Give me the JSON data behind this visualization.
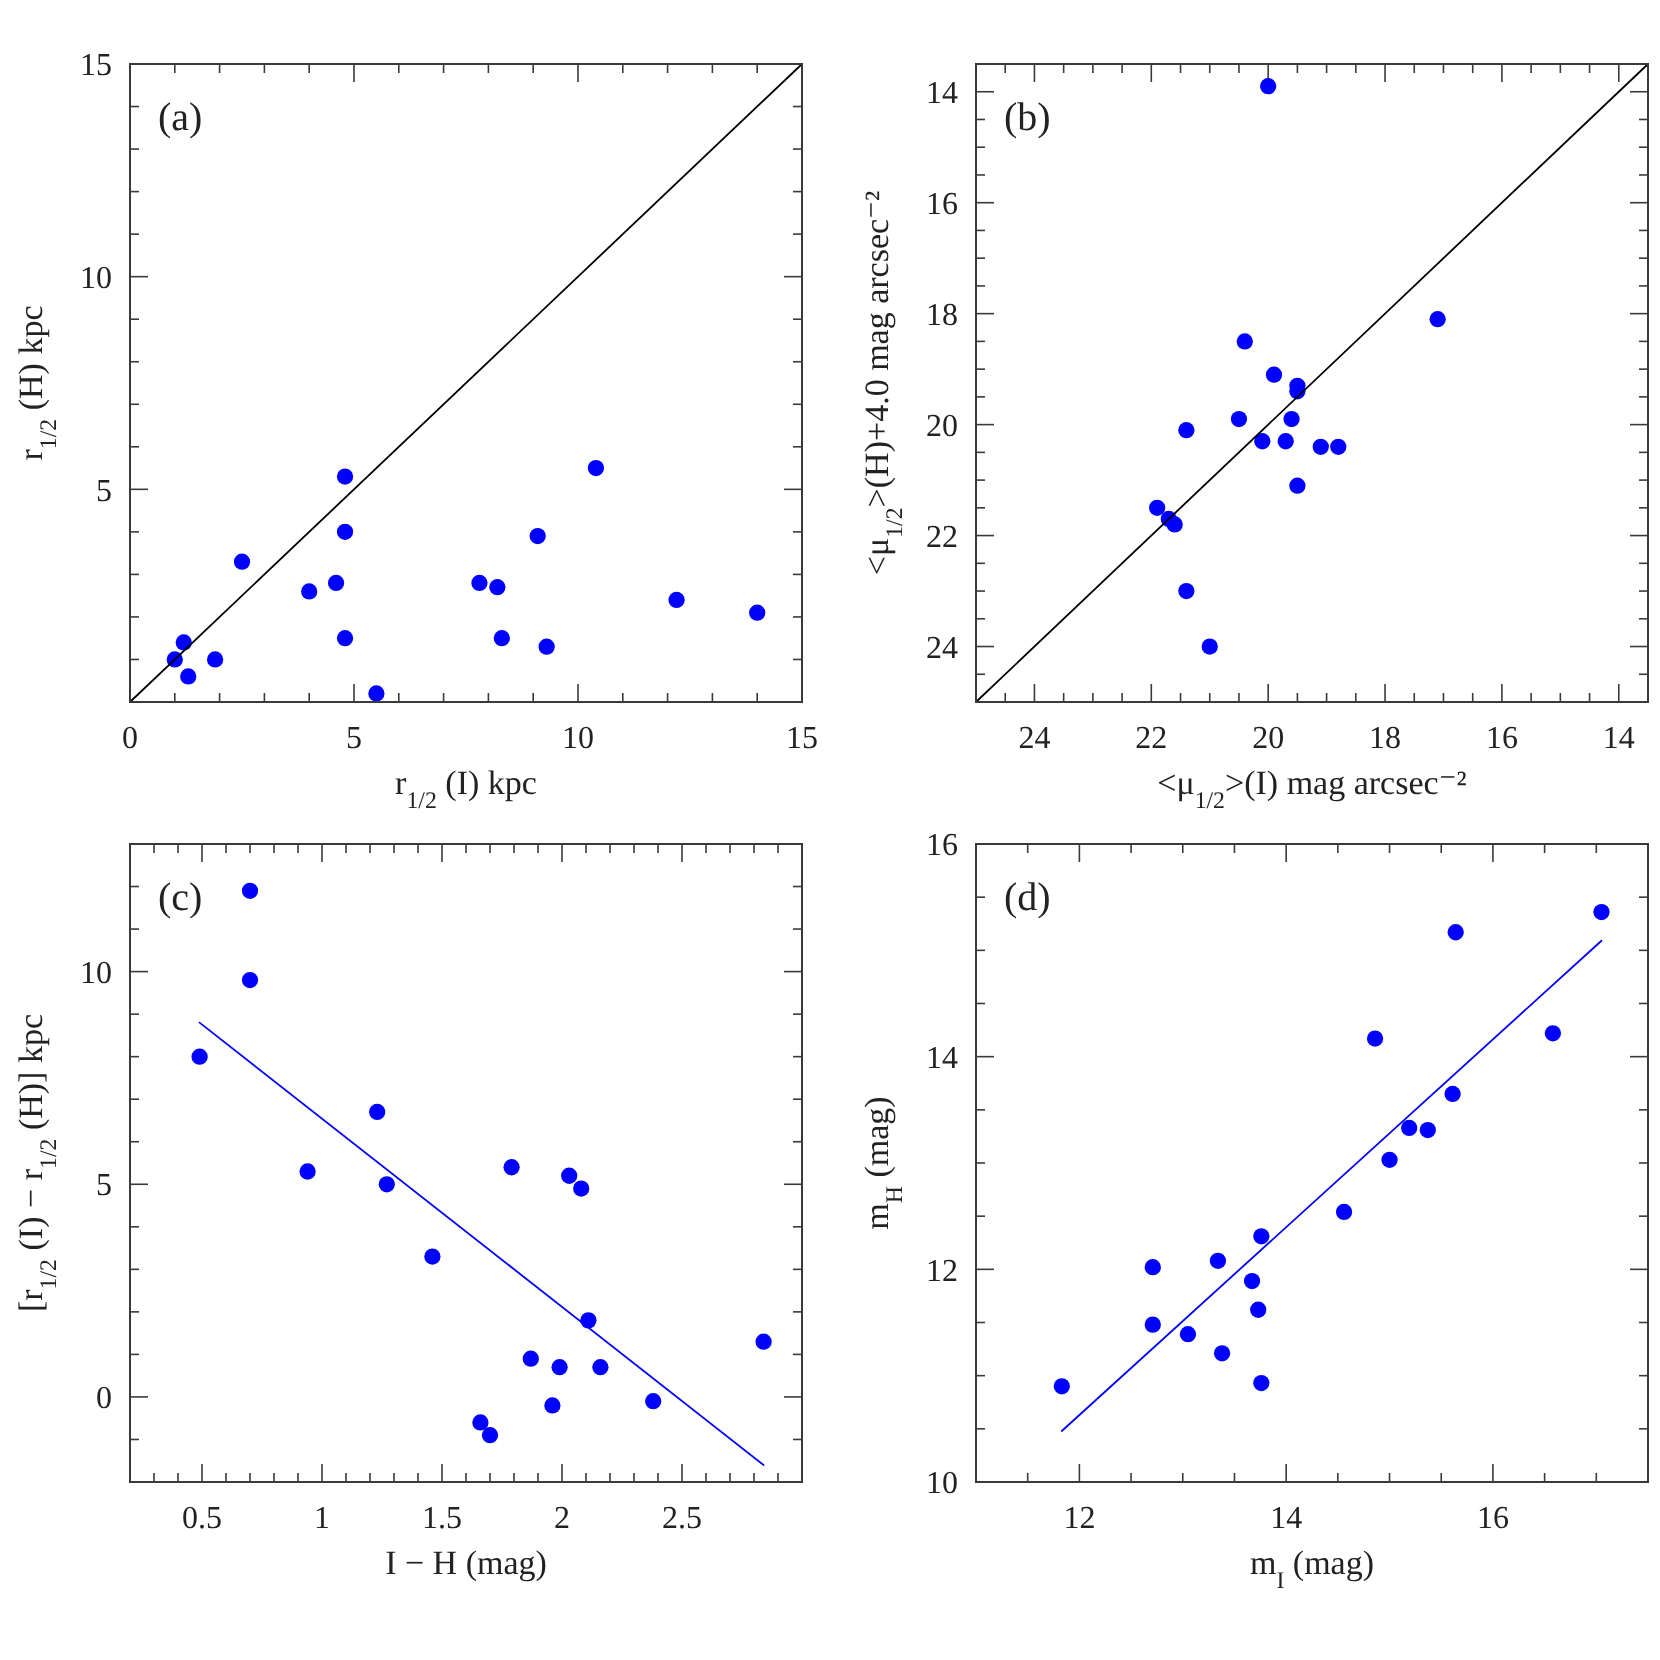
{
  "chart_data": [
    {
      "type": "scatter",
      "xlabel": "r$_{1/2}$ (I) kpc",
      "ylabel": "r$_{1/2}$ (H) kpc",
      "annotations": [
        "(a)"
      ],
      "xlim": [
        0,
        15
      ],
      "ylim": [
        0,
        15
      ],
      "xticks": [
        0,
        {
          "value": 1,
          "label": null
        },
        {
          "value": 2,
          "label": null
        },
        {
          "value": 3,
          "label": null
        },
        {
          "value": 4,
          "label": null
        },
        5,
        {
          "value": 6,
          "label": null
        },
        {
          "value": 7,
          "label": null
        },
        {
          "value": 8,
          "label": null
        },
        {
          "value": 9,
          "label": null
        },
        10,
        {
          "value": 11,
          "label": null
        },
        {
          "value": 12,
          "label": null
        },
        {
          "value": 13,
          "label": null
        },
        {
          "value": 14,
          "label": null
        },
        15
      ],
      "yticks": [
        {
          "value": 1,
          "label": null
        },
        {
          "value": 2,
          "label": null
        },
        {
          "value": 3,
          "label": null
        },
        {
          "value": 4,
          "label": null
        },
        5,
        {
          "value": 6,
          "label": null
        },
        {
          "value": 7,
          "label": null
        },
        {
          "value": 8,
          "label": null
        },
        {
          "value": 9,
          "label": null
        },
        10,
        {
          "value": 11,
          "label": null
        },
        {
          "value": 12,
          "label": null
        },
        {
          "value": 13,
          "label": null
        },
        {
          "value": 14,
          "label": null
        },
        15
      ],
      "series": [
        {
          "color": "#0000ff",
          "marker": "circle",
          "x": [
            1.0,
            1.2,
            1.3,
            1.9,
            2.5,
            4.0,
            4.6,
            4.8,
            4.8,
            4.8,
            5.5,
            7.8,
            8.2,
            8.3,
            9.1,
            9.3,
            10.4,
            12.2,
            14.0
          ],
          "values": [
            1.0,
            1.4,
            0.6,
            1.0,
            3.3,
            2.6,
            2.8,
            5.3,
            4.0,
            1.5,
            0.2,
            2.8,
            2.7,
            1.5,
            3.9,
            1.3,
            5.5,
            2.4,
            2.1
          ]
        },
        {
          "type": "line",
          "color": "#000000",
          "x": [
            0,
            15
          ],
          "values": [
            0,
            15
          ]
        }
      ]
    },
    {
      "type": "scatter",
      "xlabel": "<μ$_{1/2}$>(I) mag arcsec⁻²",
      "ylabel": "<μ$_{1/2}$>(H)+4.0 mag arcsec⁻²",
      "annotations": [
        "(b)"
      ],
      "xlim": [
        25,
        13.5
      ],
      "ylim": [
        25,
        13.5
      ],
      "xticks": [
        {
          "value": 24.5,
          "label": null
        },
        24,
        {
          "value": 23.5,
          "label": null
        },
        {
          "value": 23,
          "label": null
        },
        {
          "value": 22.5,
          "label": null
        },
        22,
        {
          "value": 21.5,
          "label": null
        },
        {
          "value": 21,
          "label": null
        },
        {
          "value": 20.5,
          "label": null
        },
        20,
        {
          "value": 19.5,
          "label": null
        },
        {
          "value": 19,
          "label": null
        },
        {
          "value": 18.5,
          "label": null
        },
        18,
        {
          "value": 17.5,
          "label": null
        },
        {
          "value": 17,
          "label": null
        },
        {
          "value": 16.5,
          "label": null
        },
        16,
        {
          "value": 15.5,
          "label": null
        },
        {
          "value": 15,
          "label": null
        },
        {
          "value": 14.5,
          "label": null
        },
        14
      ],
      "yticks": [
        14,
        {
          "value": 14.5,
          "label": null
        },
        {
          "value": 15,
          "label": null
        },
        {
          "value": 15.5,
          "label": null
        },
        16,
        {
          "value": 16.5,
          "label": null
        },
        {
          "value": 17,
          "label": null
        },
        {
          "value": 17.5,
          "label": null
        },
        18,
        {
          "value": 18.5,
          "label": null
        },
        {
          "value": 19,
          "label": null
        },
        {
          "value": 19.5,
          "label": null
        },
        20,
        {
          "value": 20.5,
          "label": null
        },
        {
          "value": 21,
          "label": null
        },
        {
          "value": 21.5,
          "label": null
        },
        22,
        {
          "value": 22.5,
          "label": null
        },
        {
          "value": 23,
          "label": null
        },
        {
          "value": 23.5,
          "label": null
        },
        24,
        {
          "value": 24.5,
          "label": null
        }
      ],
      "series": [
        {
          "color": "#0000ff",
          "marker": "circle",
          "x": [
            20.0,
            17.1,
            20.4,
            19.9,
            19.5,
            19.5,
            20.5,
            19.6,
            21.4,
            20.1,
            19.7,
            19.1,
            18.8,
            19.5,
            21.9,
            21.7,
            21.6,
            21.4,
            21.0
          ],
          "values": [
            13.9,
            18.1,
            18.5,
            19.1,
            19.3,
            19.4,
            19.9,
            19.9,
            20.1,
            20.3,
            20.3,
            20.4,
            20.4,
            21.1,
            21.5,
            21.7,
            21.8,
            23.0,
            24.0
          ]
        },
        {
          "type": "line",
          "color": "#000000",
          "x": [
            25,
            13.5
          ],
          "values": [
            25,
            13.5
          ]
        }
      ]
    },
    {
      "type": "scatter",
      "xlabel": "I − H (mag)",
      "ylabel": "[r$_{1/2}$ (I) − r$_{1/2}$ (H)] kpc",
      "annotations": [
        "(c)"
      ],
      "xlim": [
        0.2,
        3
      ],
      "ylim": [
        -2,
        13
      ],
      "xticks": [
        {
          "value": 0.3,
          "label": null
        },
        {
          "value": 0.4,
          "label": null
        },
        0.5,
        {
          "value": 0.6,
          "label": null
        },
        {
          "value": 0.7,
          "label": null
        },
        {
          "value": 0.8,
          "label": null
        },
        {
          "value": 0.9,
          "label": null
        },
        1,
        {
          "value": 1.1,
          "label": null
        },
        {
          "value": 1.2,
          "label": null
        },
        {
          "value": 1.3,
          "label": null
        },
        {
          "value": 1.4,
          "label": null
        },
        1.5,
        {
          "value": 1.6,
          "label": null
        },
        {
          "value": 1.7,
          "label": null
        },
        {
          "value": 1.8,
          "label": null
        },
        {
          "value": 1.9,
          "label": null
        },
        2,
        {
          "value": 2.1,
          "label": null
        },
        {
          "value": 2.2,
          "label": null
        },
        {
          "value": 2.3,
          "label": null
        },
        {
          "value": 2.4,
          "label": null
        },
        2.5,
        {
          "value": 2.6,
          "label": null
        },
        {
          "value": 2.7,
          "label": null
        },
        {
          "value": 2.8,
          "label": null
        },
        {
          "value": 2.9,
          "label": null
        }
      ],
      "yticks": [
        {
          "value": -1,
          "label": null
        },
        0,
        {
          "value": 1,
          "label": null
        },
        {
          "value": 2,
          "label": null
        },
        {
          "value": 3,
          "label": null
        },
        {
          "value": 4,
          "label": null
        },
        5,
        {
          "value": 6,
          "label": null
        },
        {
          "value": 7,
          "label": null
        },
        {
          "value": 8,
          "label": null
        },
        {
          "value": 9,
          "label": null
        },
        10,
        {
          "value": 11,
          "label": null
        },
        {
          "value": 12,
          "label": null
        }
      ],
      "series": [
        {
          "color": "#0000ff",
          "marker": "circle",
          "x": [
            0.49,
            0.7,
            0.7,
            0.94,
            1.23,
            1.27,
            1.46,
            1.66,
            1.7,
            1.79,
            1.87,
            1.96,
            1.99,
            2.03,
            2.08,
            2.11,
            2.16,
            2.38,
            2.84
          ],
          "values": [
            8.0,
            11.9,
            9.8,
            5.3,
            6.7,
            5.0,
            3.3,
            -0.6,
            -0.9,
            5.4,
            0.9,
            -0.2,
            0.7,
            5.2,
            4.9,
            1.8,
            0.7,
            -0.1,
            1.3
          ]
        },
        {
          "type": "line",
          "color": "#0000ff",
          "x": [
            0.49,
            2.84
          ],
          "values": [
            8.8,
            -1.6
          ]
        }
      ]
    },
    {
      "type": "scatter",
      "xlabel": "m$_{I}$ (mag)",
      "ylabel": "m$_{H}$ (mag)",
      "annotations": [
        "(d)"
      ],
      "xlim": [
        11,
        17.5
      ],
      "ylim": [
        10,
        16
      ],
      "xticks": [
        {
          "value": 11.5,
          "label": null
        },
        12,
        {
          "value": 12.5,
          "label": null
        },
        {
          "value": 13,
          "label": null
        },
        {
          "value": 13.5,
          "label": null
        },
        14,
        {
          "value": 14.5,
          "label": null
        },
        {
          "value": 15,
          "label": null
        },
        {
          "value": 15.5,
          "label": null
        },
        16,
        {
          "value": 16.5,
          "label": null
        },
        {
          "value": 17,
          "label": null
        }
      ],
      "yticks": [
        10,
        {
          "value": 10.5,
          "label": null
        },
        {
          "value": 11,
          "label": null
        },
        {
          "value": 11.5,
          "label": null
        },
        12,
        {
          "value": 12.5,
          "label": null
        },
        {
          "value": 13,
          "label": null
        },
        {
          "value": 13.5,
          "label": null
        },
        14,
        {
          "value": 14.5,
          "label": null
        },
        {
          "value": 15,
          "label": null
        },
        {
          "value": 15.5,
          "label": null
        },
        16
      ],
      "series": [
        {
          "color": "#0000ff",
          "marker": "circle",
          "x": [
            11.83,
            12.71,
            12.71,
            13.05,
            13.34,
            13.38,
            13.67,
            13.73,
            13.76,
            13.76,
            14.56,
            14.86,
            15.0,
            15.19,
            15.37,
            15.61,
            15.64,
            16.58,
            17.05
          ],
          "values": [
            10.9,
            12.02,
            11.48,
            11.39,
            12.08,
            11.21,
            11.89,
            11.62,
            12.31,
            10.93,
            12.54,
            14.17,
            13.03,
            13.33,
            13.31,
            13.65,
            15.17,
            14.22,
            15.36
          ]
        },
        {
          "type": "line",
          "color": "#0000ff",
          "x": [
            11.83,
            17.05
          ],
          "values": [
            10.48,
            15.09
          ]
        }
      ]
    }
  ]
}
